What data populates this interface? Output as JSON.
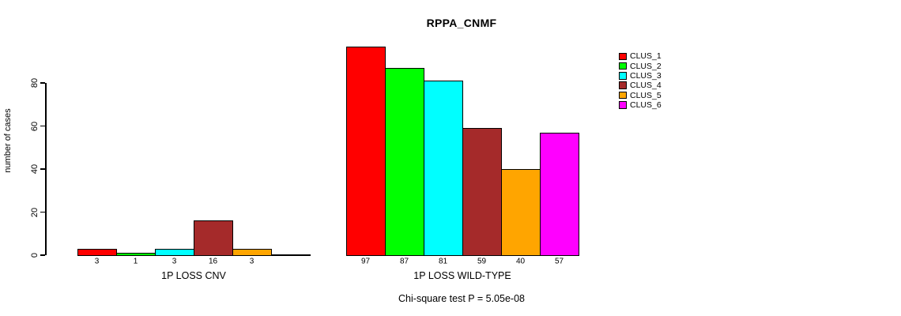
{
  "chart_data": {
    "type": "bar",
    "title": "RPPA_CNMF",
    "ylabel": "number of cases",
    "xlabel": "",
    "yticks": [
      0,
      20,
      40,
      60,
      80
    ],
    "ylim": [
      0,
      97
    ],
    "grid": false,
    "legend_position": "right",
    "series_names": [
      "CLUS_1",
      "CLUS_2",
      "CLUS_3",
      "CLUS_4",
      "CLUS_5",
      "CLUS_6"
    ],
    "series_colors": [
      "#ff0000",
      "#00ff00",
      "#00ffff",
      "#a52a2a",
      "#ffa500",
      "#ff00ff"
    ],
    "groups": [
      {
        "label": "1P LOSS CNV",
        "values": [
          3,
          1,
          3,
          16,
          3,
          0
        ],
        "bar_labels": [
          "3",
          "1",
          "3",
          "16",
          "3",
          ""
        ]
      },
      {
        "label": "1P LOSS WILD-TYPE",
        "values": [
          97,
          87,
          81,
          59,
          40,
          57
        ],
        "bar_labels": [
          "97",
          "87",
          "81",
          "59",
          "40",
          "57"
        ]
      }
    ],
    "footnote": "Chi-square test P = 5.05e-08"
  }
}
